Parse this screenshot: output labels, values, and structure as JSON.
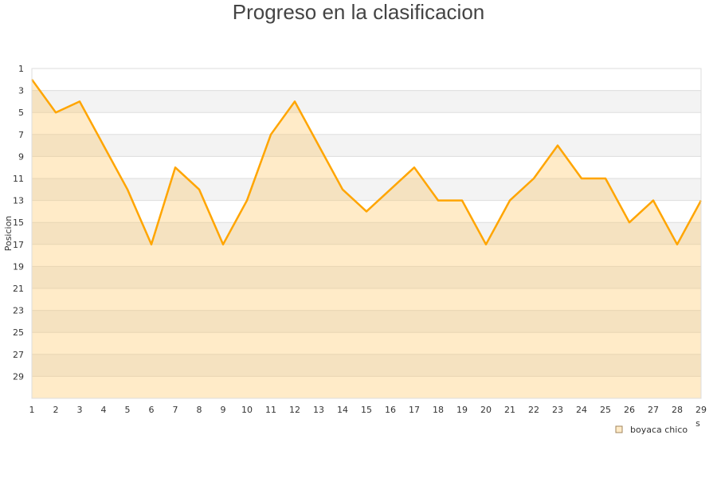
{
  "chart_data": {
    "type": "area",
    "title": "Progreso en la clasificacion",
    "ylabel": "Posicion",
    "xlabel": "s",
    "x": [
      1,
      2,
      3,
      4,
      5,
      6,
      7,
      8,
      9,
      10,
      11,
      12,
      13,
      14,
      15,
      16,
      17,
      18,
      19,
      20,
      21,
      22,
      23,
      24,
      25,
      26,
      27,
      28,
      29
    ],
    "series": [
      {
        "name": "boyaca chico",
        "values": [
          2,
          5,
          4,
          8,
          12,
          17,
          10,
          12,
          17,
          13,
          7,
          4,
          8,
          12,
          14,
          12,
          10,
          13,
          13,
          17,
          13,
          11,
          8,
          11,
          11,
          15,
          13,
          17,
          13
        ]
      }
    ],
    "xlim": [
      1,
      29
    ],
    "ylim": [
      1,
      31
    ],
    "y_inverted": true,
    "y_ticks": [
      1,
      3,
      5,
      7,
      9,
      11,
      13,
      15,
      17,
      19,
      21,
      23,
      25,
      27,
      29
    ],
    "grid": true,
    "legend_position": "bottom-right",
    "colors": {
      "line": "#FFA500",
      "fill": "#FFEBC8",
      "band": "#F3F3F3",
      "band_fill": "#F5E2C0"
    }
  }
}
